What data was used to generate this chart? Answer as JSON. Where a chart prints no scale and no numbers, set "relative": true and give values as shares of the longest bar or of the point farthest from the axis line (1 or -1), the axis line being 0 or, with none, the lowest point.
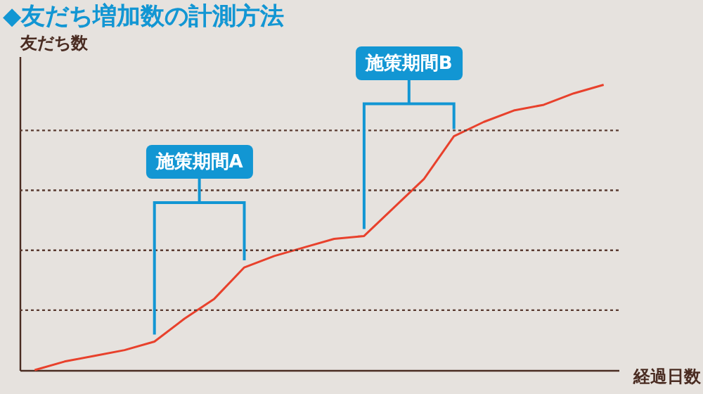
{
  "chart_data": {
    "type": "line",
    "title": "◆友だち増加数の計測方法",
    "xlabel": "経過日数",
    "ylabel": "友だち数",
    "relative": true,
    "ref_lines": [
      {
        "axis": "y",
        "value": 0.21,
        "color": "#5a3a30",
        "line_style": "dotted"
      },
      {
        "axis": "y",
        "value": 0.42,
        "color": "#5a3a30",
        "line_style": "dotted"
      },
      {
        "axis": "y",
        "value": 0.63,
        "color": "#5a3a30",
        "line_style": "dotted"
      },
      {
        "axis": "y",
        "value": 0.84,
        "color": "#5a3a30",
        "line_style": "dotted"
      }
    ],
    "categories": [
      null,
      null,
      null,
      null,
      null,
      null,
      null,
      null,
      null,
      null,
      null,
      null,
      null,
      null,
      null,
      null,
      null,
      null,
      null,
      null
    ],
    "series": [
      {
        "color": "#e8412c",
        "values": [
          0,
          0.03,
          0.05,
          0.07,
          0.1,
          0.18,
          0.25,
          0.36,
          0.4,
          0.43,
          0.46,
          0.47,
          0.57,
          0.67,
          0.82,
          0.87,
          0.91,
          0.93,
          0.97,
          1.0
        ]
      }
    ],
    "annotations": [
      "施策期間A",
      "施策期間B"
    ]
  }
}
